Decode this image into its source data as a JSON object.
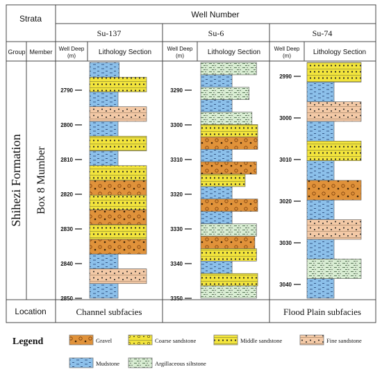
{
  "header": {
    "strata": "Strata",
    "well_number": "Well Number",
    "group": "Group",
    "member": "Member",
    "well_deep": "Well Deep",
    "well_deep_unit": "(m)",
    "lithology_section": "Lithology Section"
  },
  "group_name": "Shihezi Formation",
  "member_name": "Box 8 Mumber",
  "location_label": "Location",
  "legend_title": "Legend",
  "lithology_types": {
    "gravel": {
      "label": "Gravel",
      "color": "#e0923a"
    },
    "coarse": {
      "label": "Coarse sandstone",
      "color": "#f2e43c"
    },
    "middle": {
      "label": "Middle sandstone",
      "color": "#f2e43c"
    },
    "fine": {
      "label": "Fine sandstone",
      "color": "#f3c9a6"
    },
    "mud": {
      "label": "Mudstone",
      "color": "#8cc0ea"
    },
    "silt": {
      "label": "Argillaceous siltstone",
      "color": "#d8ecd2"
    }
  },
  "wells": [
    {
      "name": "Su-137",
      "location": "Channel subfacies",
      "depth_ticks": [
        "2790",
        "2800",
        "2810",
        "2820",
        "2830",
        "2840",
        "2850"
      ],
      "layers": [
        {
          "lith": "mud",
          "w": 0.52
        },
        {
          "lith": "middle",
          "w": 1.0
        },
        {
          "lith": "mud",
          "w": 0.5
        },
        {
          "lith": "fine",
          "w": 1.0
        },
        {
          "lith": "mud",
          "w": 0.5
        },
        {
          "lith": "middle",
          "w": 1.0
        },
        {
          "lith": "mud",
          "w": 0.5
        },
        {
          "lith": "middle",
          "w": 1.0
        },
        {
          "lith": "gravel",
          "w": 1.0
        },
        {
          "lith": "middle",
          "w": 1.0
        },
        {
          "lith": "gravel",
          "w": 1.0
        },
        {
          "lith": "middle",
          "w": 1.0
        },
        {
          "lith": "gravel",
          "w": 1.0
        },
        {
          "lith": "mud",
          "w": 0.5
        },
        {
          "lith": "fine",
          "w": 1.0
        },
        {
          "lith": "mud",
          "w": 0.5
        }
      ]
    },
    {
      "name": "Su-6",
      "location": "",
      "depth_ticks": [
        "3290",
        "3300",
        "3310",
        "3320",
        "3330",
        "3340",
        "3350"
      ],
      "layers": [
        {
          "lith": "silt",
          "w": 0.98
        },
        {
          "lith": "mud",
          "w": 0.55
        },
        {
          "lith": "silt",
          "w": 0.85
        },
        {
          "lith": "mud",
          "w": 0.55
        },
        {
          "lith": "silt",
          "w": 0.9
        },
        {
          "lith": "middle",
          "w": 1.0
        },
        {
          "lith": "gravel",
          "w": 1.0
        },
        {
          "lith": "mud",
          "w": 0.55
        },
        {
          "lith": "gravel",
          "w": 0.98
        },
        {
          "lith": "middle",
          "w": 0.78
        },
        {
          "lith": "mud",
          "w": 0.55
        },
        {
          "lith": "gravel",
          "w": 1.0
        },
        {
          "lith": "mud",
          "w": 0.55
        },
        {
          "lith": "silt",
          "w": 0.98
        },
        {
          "lith": "gravel",
          "w": 0.95
        },
        {
          "lith": "middle",
          "w": 0.98
        },
        {
          "lith": "mud",
          "w": 0.55
        },
        {
          "lith": "middle",
          "w": 1.0
        },
        {
          "lith": "silt",
          "w": 0.98
        }
      ]
    },
    {
      "name": "Su-74",
      "location": "Flood Plain subfacies",
      "depth_ticks": [
        "2990",
        "3000",
        "3010",
        "3020",
        "3030",
        "3040"
      ],
      "layers": [
        {
          "lith": "middle",
          "w": 1.0
        },
        {
          "lith": "mud",
          "w": 0.5
        },
        {
          "lith": "fine",
          "w": 1.0
        },
        {
          "lith": "mud",
          "w": 0.5
        },
        {
          "lith": "middle",
          "w": 1.0
        },
        {
          "lith": "mud",
          "w": 0.5
        },
        {
          "lith": "gravel",
          "w": 1.0
        },
        {
          "lith": "mud",
          "w": 0.5
        },
        {
          "lith": "fine",
          "w": 1.0
        },
        {
          "lith": "mud",
          "w": 0.5
        },
        {
          "lith": "silt",
          "w": 1.0
        },
        {
          "lith": "mud",
          "w": 0.5
        }
      ]
    }
  ]
}
